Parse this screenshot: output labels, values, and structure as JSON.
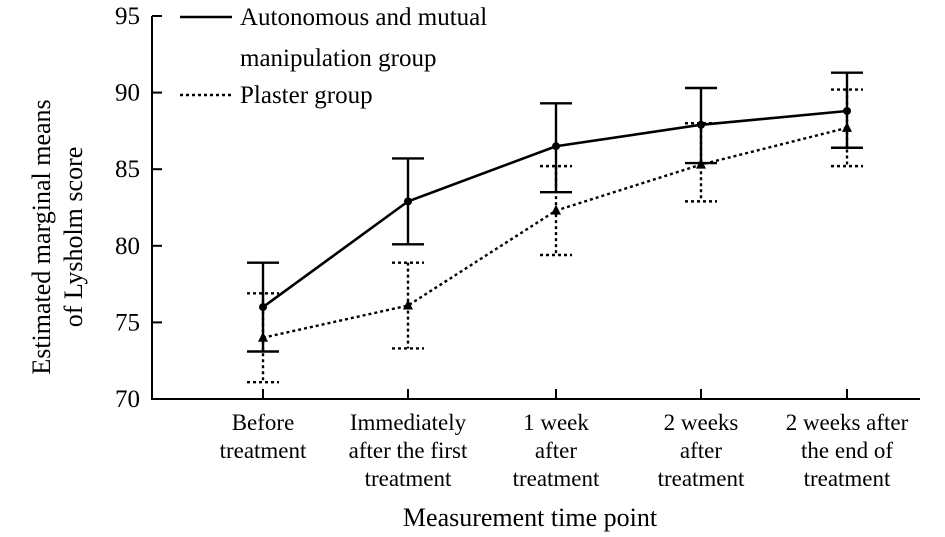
{
  "chart_data": {
    "type": "line",
    "title": "",
    "xlabel": "Measurement time point",
    "ylabel_lines": [
      "Estimated marginal means",
      "of Lysholm score"
    ],
    "ylim": [
      70,
      95
    ],
    "yticks": [
      70,
      75,
      80,
      85,
      90,
      95
    ],
    "categories": [
      [
        "Before",
        "treatment"
      ],
      [
        "Immediately",
        "after the first",
        "treatment"
      ],
      [
        "1 week",
        "after",
        "treatment"
      ],
      [
        "2 weeks",
        "after",
        "treatment"
      ],
      [
        "2 weeks after",
        "the end of",
        "treatment"
      ]
    ],
    "legend_position": "top-left",
    "series": [
      {
        "name_lines": [
          "Autonomous and mutual",
          "manipulation group"
        ],
        "style": "solid",
        "marker": "circle",
        "values": [
          76.0,
          82.9,
          86.5,
          87.9,
          88.8
        ],
        "err_low": [
          73.1,
          80.1,
          83.5,
          85.4,
          86.4
        ],
        "err_high": [
          78.9,
          85.7,
          89.3,
          90.3,
          91.3
        ]
      },
      {
        "name_lines": [
          "Plaster group"
        ],
        "style": "dotted",
        "marker": "triangle",
        "values": [
          74.0,
          76.1,
          82.3,
          85.3,
          87.7
        ],
        "err_low": [
          71.1,
          73.3,
          79.4,
          82.9,
          85.2
        ],
        "err_high": [
          76.9,
          78.9,
          85.2,
          88.0,
          90.2
        ]
      }
    ]
  }
}
